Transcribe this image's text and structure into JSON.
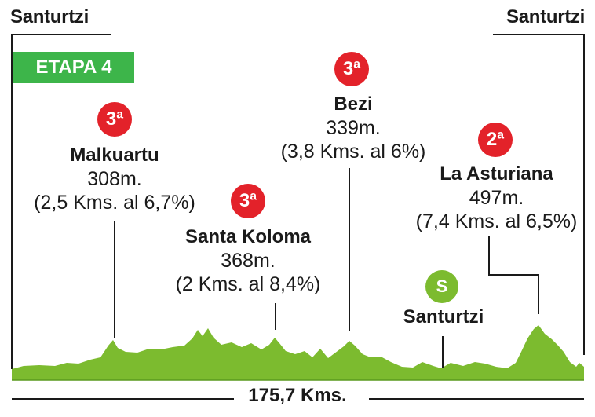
{
  "start_label": "Santurtzi",
  "finish_label": "Santurtzi",
  "stage_badge": "ETAPA 4",
  "climbs": [
    {
      "category": "3ª",
      "name": "Malkuartu",
      "altitude": "308m.",
      "detail": "(2,5 Kms. al 6,7%)"
    },
    {
      "category": "3ª",
      "name": "Santa Koloma",
      "altitude": "368m.",
      "detail": "(2 Kms. al 8,4%)"
    },
    {
      "category": "3ª",
      "name": "Bezi",
      "altitude": "339m.",
      "detail": "(3,8 Kms. al 6%)"
    },
    {
      "category": "2ª",
      "name": "La Asturiana",
      "altitude": "497m.",
      "detail": "(7,4 Kms. al 6,5%)"
    }
  ],
  "sprint": {
    "badge": "S",
    "name": "Santurtzi"
  },
  "total_distance": "175,7 Kms.",
  "colors": {
    "profile": "#7cbb2f",
    "climb_badge": "#e3222a",
    "stage_badge": "#3db54a",
    "sprint_badge": "#7cbb2f"
  }
}
